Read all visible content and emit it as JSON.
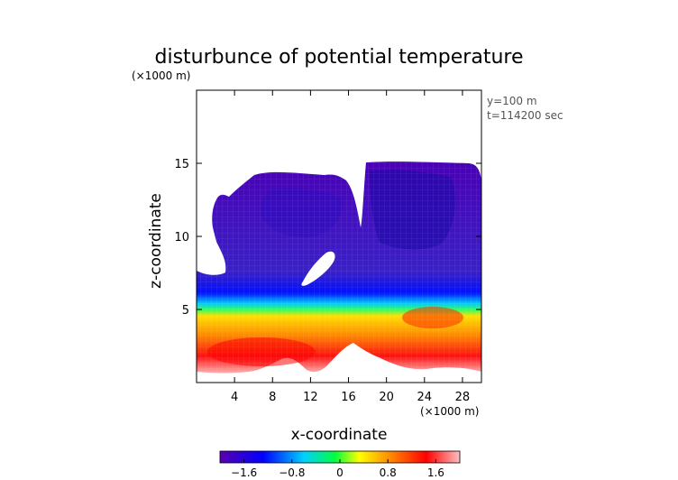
{
  "chart_data": {
    "type": "heatmap",
    "title": "disturbunce of potential temperature",
    "z_unit_label": "(×1000 m)",
    "x_unit_label": "(×1000 m)",
    "xlabel": "x-coordinate",
    "ylabel": "z-coordinate",
    "annotations": [
      "y=100 m",
      "t=114200 sec"
    ],
    "xlim": [
      0,
      30
    ],
    "ylim": [
      0,
      20
    ],
    "xticks": [
      4,
      8,
      12,
      16,
      20,
      24,
      28
    ],
    "yticks": [
      5,
      10,
      15
    ],
    "colorbar": {
      "min": -2.0,
      "max": 2.0,
      "ticks": [
        -1.6,
        -0.8,
        0,
        0.8,
        1.6
      ],
      "tick_labels": [
        "−1.6",
        "−0.8",
        "0",
        "0.8",
        "1.6"
      ],
      "colors": [
        "#5a00b0",
        "#0000ff",
        "#00d0ff",
        "#00ff40",
        "#ffff00",
        "#ff8000",
        "#ff0000",
        "#ffc0c0"
      ]
    },
    "fields": {
      "cold_region": {
        "value_range": [
          -1.9,
          -1.0
        ],
        "z_range_km": [
          6.5,
          15.3
        ]
      },
      "transition_layer": {
        "value_range": [
          -0.9,
          0.3
        ],
        "z_range_km": [
          4.5,
          6.5
        ]
      },
      "warm_region": {
        "value_range": [
          0.4,
          1.9
        ],
        "z_range_km": [
          1.0,
          5.5
        ]
      }
    }
  }
}
